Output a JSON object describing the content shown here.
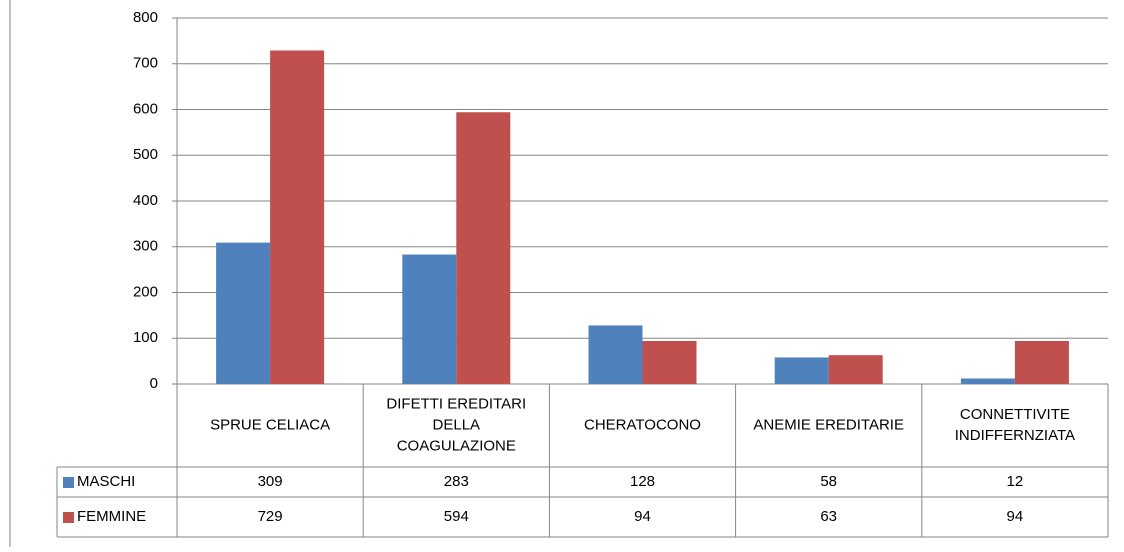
{
  "chart_data": {
    "type": "bar",
    "categories": [
      [
        "SPRUE CELIACA"
      ],
      [
        "DIFETTI EREDITARI",
        "DELLA",
        "COAGULAZIONE"
      ],
      [
        "CHERATOCONO"
      ],
      [
        "ANEMIE EREDITARIE"
      ],
      [
        "CONNETTIVITE",
        "INDIFFERNZIATA"
      ]
    ],
    "series": [
      {
        "name": "MASCHI",
        "color": "#4F81BD",
        "values": [
          309,
          283,
          128,
          58,
          12
        ]
      },
      {
        "name": "FEMMINE",
        "color": "#C0504D",
        "values": [
          729,
          594,
          94,
          63,
          94
        ]
      }
    ],
    "ylim": [
      0,
      800
    ],
    "yticks": [
      0,
      100,
      200,
      300,
      400,
      500,
      600,
      700,
      800
    ],
    "grid": true,
    "legend": "data-table",
    "data_table": true
  }
}
